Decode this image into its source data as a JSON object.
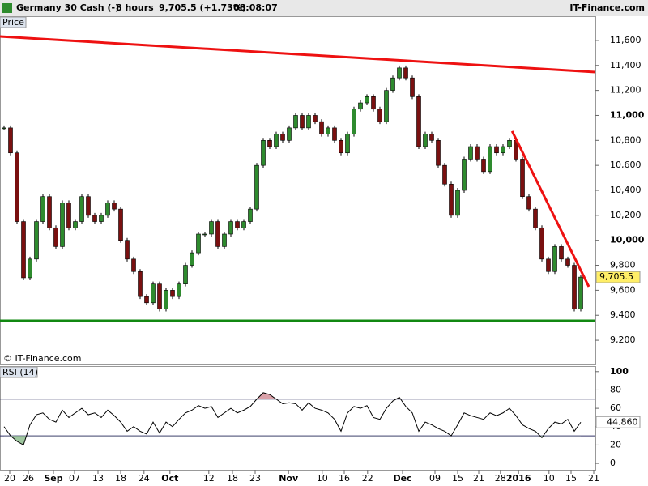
{
  "header": {
    "instrument": "Germany 30 Cash (-)",
    "interval": "8 hours",
    "quote": "9,705.5 (+1.73%)",
    "time": "08:08:07",
    "brand": "IT-Finance.com"
  },
  "chart_data": [
    {
      "type": "candlestick",
      "title": "Price",
      "credit": "© IT-Finance.com",
      "xlim": [
        -0.625,
        91.25
      ],
      "xticks": [
        {
          "value": 0.875,
          "label": "20"
        },
        {
          "value": 3.75,
          "label": "26"
        },
        {
          "value": 7.625,
          "label": "Sep"
        },
        {
          "value": 10.875,
          "label": "07"
        },
        {
          "value": 14.5,
          "label": "13"
        },
        {
          "value": 18,
          "label": "18"
        },
        {
          "value": 21.6,
          "label": "24"
        },
        {
          "value": 25.6,
          "label": "Oct"
        },
        {
          "value": 31.6,
          "label": "12"
        },
        {
          "value": 35.25,
          "label": "18"
        },
        {
          "value": 38.75,
          "label": "23"
        },
        {
          "value": 43.9,
          "label": "Nov"
        },
        {
          "value": 49.1,
          "label": "10"
        },
        {
          "value": 52.5,
          "label": "16"
        },
        {
          "value": 56.1,
          "label": "22"
        },
        {
          "value": 61.5,
          "label": "Dec"
        },
        {
          "value": 66.5,
          "label": "09"
        },
        {
          "value": 70,
          "label": "15"
        },
        {
          "value": 73.25,
          "label": "21"
        },
        {
          "value": 76.6,
          "label": "28"
        },
        {
          "value": 79.4,
          "label": "2016"
        },
        {
          "value": 84.1,
          "label": "10"
        },
        {
          "value": 87.5,
          "label": "15"
        },
        {
          "value": 91,
          "label": "21"
        }
      ],
      "ylim": [
        9006,
        11794
      ],
      "yticks": [
        {
          "value": 9200,
          "label": "9,200"
        },
        {
          "value": 9400,
          "label": "9,400"
        },
        {
          "value": 9600,
          "label": "9,600"
        },
        {
          "value": 9800,
          "label": "9,800"
        },
        {
          "value": 10000,
          "label": "10,000"
        },
        {
          "value": 10200,
          "label": "10,200"
        },
        {
          "value": 10400,
          "label": "10,400"
        },
        {
          "value": 10600,
          "label": "10,600"
        },
        {
          "value": 10800,
          "label": "10,800"
        },
        {
          "value": 11000,
          "label": "11,000"
        },
        {
          "value": 11200,
          "label": "11,200"
        },
        {
          "value": 11400,
          "label": "11,400"
        },
        {
          "value": 11600,
          "label": "11,600"
        }
      ],
      "series": [
        {
          "name": "Price",
          "up_color": "#2e8b2e",
          "down_color": "#7a1010",
          "values": [
            10900,
            10700,
            10150,
            9700,
            9850,
            10150,
            10350,
            10100,
            9950,
            10300,
            10100,
            10150,
            10350,
            10200,
            10150,
            10200,
            10300,
            10250,
            10000,
            9850,
            9750,
            9550,
            9500,
            9650,
            9450,
            9600,
            9550,
            9650,
            9800,
            9900,
            10050,
            10050,
            10150,
            9950,
            10050,
            10150,
            10100,
            10150,
            10250,
            10600,
            10800,
            10750,
            10850,
            10800,
            10900,
            11000,
            10900,
            11000,
            10950,
            10850,
            10900,
            10800,
            10700,
            10850,
            11050,
            11100,
            11150,
            11050,
            10950,
            11200,
            11300,
            11380,
            11300,
            11150,
            10750,
            10850,
            10800,
            10600,
            10450,
            10200,
            10400,
            10650,
            10750,
            10650,
            10550,
            10750,
            10700,
            10750,
            10800,
            10650,
            10350,
            10250,
            10100,
            9850,
            9750,
            9950,
            9850,
            9800,
            9450,
            9705.5
          ],
          "last_label": "9,705.5"
        }
      ],
      "trendlines": [
        {
          "color": "#ee1111",
          "points": [
            [
              -0.625,
              11632
            ],
            [
              91.25,
              11347
            ]
          ]
        },
        {
          "color": "#ee1111",
          "points": [
            [
              78.4,
              10874
            ],
            [
              90.25,
              9629
            ]
          ]
        },
        {
          "color": "#118811",
          "points": [
            [
              -0.625,
              9356
            ],
            [
              91.25,
              9356
            ]
          ]
        }
      ]
    },
    {
      "type": "line",
      "title": "RSI (14)",
      "ylim": [
        -7,
        106
      ],
      "yticks": [
        0,
        20,
        40,
        60,
        80,
        100
      ],
      "bands": [
        30,
        70
      ],
      "series": [
        {
          "name": "RSI (14)",
          "color": "#000000",
          "values": [
            40,
            30,
            24,
            20,
            42,
            53,
            55,
            48,
            45,
            58,
            50,
            55,
            60,
            53,
            55,
            50,
            58,
            52,
            45,
            35,
            40,
            35,
            32,
            45,
            33,
            45,
            40,
            48,
            55,
            58,
            63,
            60,
            62,
            50,
            55,
            60,
            55,
            58,
            62,
            70,
            77,
            75,
            70,
            65,
            66,
            65,
            58,
            66,
            60,
            58,
            55,
            48,
            35,
            55,
            62,
            60,
            63,
            50,
            48,
            60,
            68,
            72,
            62,
            55,
            35,
            45,
            42,
            38,
            35,
            30,
            42,
            55,
            52,
            50,
            48,
            55,
            52,
            55,
            60,
            52,
            42,
            38,
            35,
            28,
            38,
            45,
            43,
            48,
            35,
            44.86
          ],
          "value_labels": {
            "89": "44.860"
          }
        }
      ]
    }
  ]
}
